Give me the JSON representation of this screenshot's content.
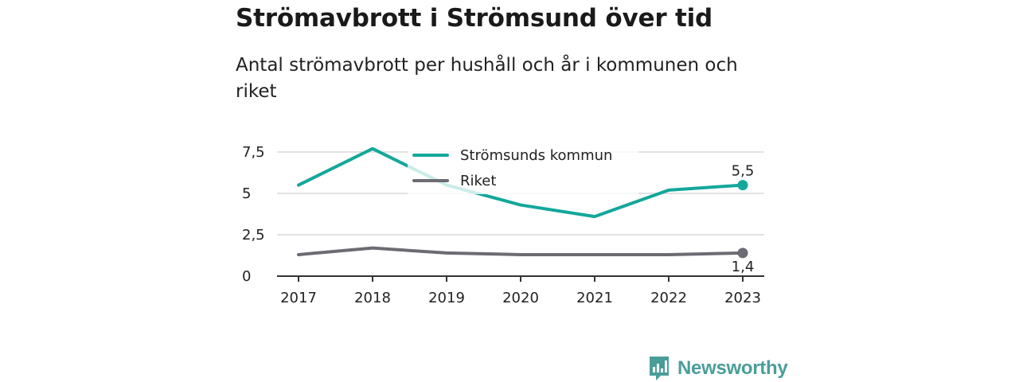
{
  "title": "Strömavbrott i Strömsund över tid",
  "subtitle": "Antal strömavbrott per hushåll och år i kommunen och riket",
  "brand": {
    "name": "Newsworthy",
    "icon": "newsworthy-logo-icon",
    "color": "#4a9e99"
  },
  "chart_data": {
    "type": "line",
    "title": "Strömavbrott i Strömsund över tid",
    "subtitle": "Antal strömavbrott per hushåll och år i kommunen och riket",
    "xlabel": "",
    "ylabel": "",
    "categories": [
      "2017",
      "2018",
      "2019",
      "2020",
      "2021",
      "2022",
      "2023"
    ],
    "ylim": [
      0,
      7.5
    ],
    "yticks": [
      0,
      2.5,
      5,
      7.5
    ],
    "ytick_labels": [
      "0",
      "2,5",
      "5",
      "7,5"
    ],
    "grid": true,
    "legend_position": "top",
    "series": [
      {
        "name": "Strömsunds kommun",
        "color": "#14a79b",
        "values": [
          5.5,
          7.7,
          5.5,
          4.3,
          3.6,
          5.2,
          5.5
        ],
        "end_label": "5,5"
      },
      {
        "name": "Riket",
        "color": "#6d6b73",
        "values": [
          1.3,
          1.7,
          1.4,
          1.3,
          1.3,
          1.3,
          1.4
        ],
        "end_label": "1,4"
      }
    ]
  }
}
